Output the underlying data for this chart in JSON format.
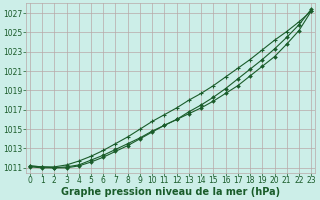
{
  "title": "",
  "xlabel": "Graphe pression niveau de la mer (hPa)",
  "ylabel": "",
  "bg_color": "#cceee8",
  "grid_color": "#b8a8a8",
  "line_color": "#1a5c2a",
  "x_data": [
    0,
    1,
    2,
    3,
    4,
    5,
    6,
    7,
    8,
    9,
    10,
    11,
    12,
    13,
    14,
    15,
    16,
    17,
    18,
    19,
    20,
    21,
    22,
    23
  ],
  "line1": [
    1011.1,
    1011.0,
    1011.0,
    1011.1,
    1011.3,
    1011.8,
    1012.3,
    1012.9,
    1013.5,
    1014.1,
    1014.8,
    1015.4,
    1016.0,
    1016.6,
    1017.2,
    1017.9,
    1018.7,
    1019.5,
    1020.5,
    1021.5,
    1022.5,
    1023.8,
    1025.2,
    1027.2
  ],
  "line2": [
    1011.2,
    1011.1,
    1011.0,
    1011.0,
    1011.2,
    1011.6,
    1012.1,
    1012.7,
    1013.3,
    1014.0,
    1014.7,
    1015.4,
    1016.0,
    1016.8,
    1017.5,
    1018.3,
    1019.2,
    1020.2,
    1021.2,
    1022.2,
    1023.3,
    1024.5,
    1025.8,
    1027.4
  ],
  "line3": [
    1011.2,
    1011.1,
    1011.1,
    1011.3,
    1011.7,
    1012.2,
    1012.8,
    1013.5,
    1014.2,
    1015.0,
    1015.8,
    1016.5,
    1017.2,
    1018.0,
    1018.7,
    1019.5,
    1020.4,
    1021.3,
    1022.2,
    1023.2,
    1024.2,
    1025.1,
    1026.1,
    1027.2
  ],
  "ylim": [
    1010.5,
    1028.0
  ],
  "xlim_min": -0.3,
  "xlim_max": 23.3,
  "yticks": [
    1011,
    1013,
    1015,
    1017,
    1019,
    1021,
    1023,
    1025,
    1027
  ],
  "xticks": [
    0,
    1,
    2,
    3,
    4,
    5,
    6,
    7,
    8,
    9,
    10,
    11,
    12,
    13,
    14,
    15,
    16,
    17,
    18,
    19,
    20,
    21,
    22,
    23
  ],
  "xlabel_fontsize": 7.0,
  "tick_fontsize": 5.5,
  "xlabel_color": "#1a5c2a",
  "tick_color": "#1a5c2a",
  "linewidth": 0.8,
  "markersize": 2.0
}
